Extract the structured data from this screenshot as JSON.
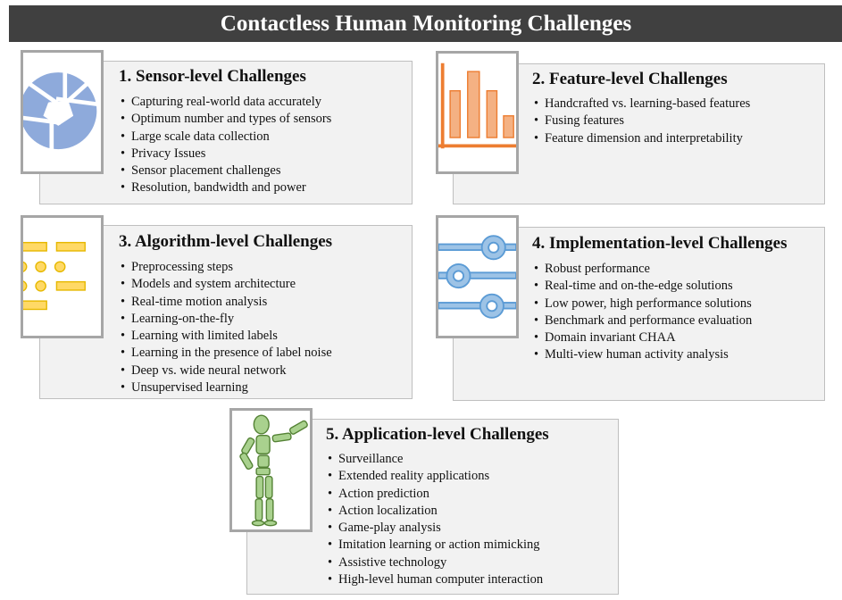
{
  "title": "Contactless Human Monitoring Challenges",
  "colors": {
    "title_bg": "#404040",
    "card_bg": "#f2f2f2",
    "frame": "#a6a6a6",
    "sensor_icon": "#8eaadb",
    "feature_icon": "#f4b183",
    "algorithm_icon": "#ffd966",
    "implementation_icon": "#9dc3e6",
    "application_icon": "#a9d18e"
  },
  "panels": [
    {
      "heading": "1. Sensor-level  Challenges",
      "icon": "camera-aperture-icon",
      "items": [
        "Capturing  real-world  data accurately",
        "Optimum  number  and types of sensors",
        "Large scale  data collection",
        "Privacy  Issues",
        "Sensor placement  challenges",
        "Resolution,  bandwidth  and power"
      ]
    },
    {
      "heading": "2. Feature-level  Challenges",
      "icon": "bar-chart-icon",
      "items": [
        "Handcrafted  vs. learning-based  features",
        "Fusing  features",
        "Feature dimension  and interpretability"
      ]
    },
    {
      "heading": "3. Algorithm-level  Challenges",
      "icon": "flowchart-icon",
      "items": [
        "Preprocessing  steps",
        "Models and system  architecture",
        "Real-time  motion  analysis",
        "Learning-on-the-fly",
        "Learning  with limited  labels",
        "Learning  in the presence of label noise",
        "Deep vs. wide neural network",
        "Unsupervised  learning"
      ]
    },
    {
      "heading": "4. Implementation-level  Challenges",
      "icon": "slider-controls-icon",
      "items": [
        "Robust  performance",
        "Real-time  and on-the-edge  solutions",
        "Low power,  high  performance  solutions",
        "Benchmark  and performance  evaluation",
        "Domain  invariant  CHAA",
        "Multi-view  human  activity  analysis"
      ]
    },
    {
      "heading": "5. Application-level  Challenges",
      "icon": "human-figure-icon",
      "items": [
        "Surveillance",
        "Extended  reality  applications",
        "Action  prediction",
        "Action  localization",
        "Game-play  analysis",
        "Imitation  learning  or action mimicking",
        "Assistive  technology",
        "High-level  human  computer  interaction"
      ]
    }
  ]
}
